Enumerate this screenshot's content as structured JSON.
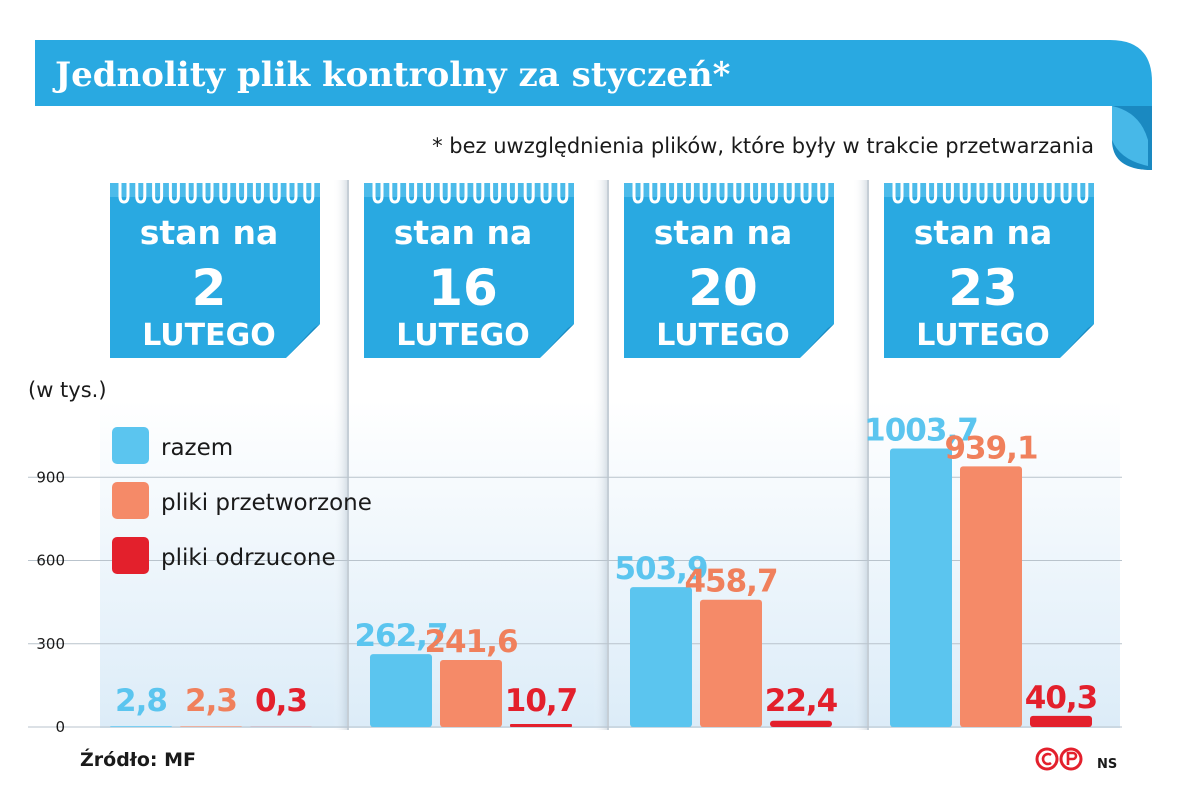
{
  "title": "Jednolity plik kontrolny za styczeń*",
  "footnote": "* bez uwzględnienia plików, które były w trakcie przetwarzania",
  "calendars": [
    {
      "top": "stan na",
      "day": "2",
      "month": "LUTEGO"
    },
    {
      "top": "stan na",
      "day": "16",
      "month": "LUTEGO"
    },
    {
      "top": "stan na",
      "day": "20",
      "month": "LUTEGO"
    },
    {
      "top": "stan na",
      "day": "23",
      "month": "LUTEGO"
    }
  ],
  "source": "Źródło: MF",
  "signature": "NS",
  "colors": {
    "razem": "#5bc5ef",
    "przetworzone": "#f58a68",
    "odrzucone": "#e3202c",
    "brand_blue": "#29a9e1"
  },
  "chart_data": {
    "type": "bar",
    "title": "Jednolity plik kontrolny za styczeń*",
    "unit_label": "(w tys.)",
    "categories": [
      "stan na 2 LUTEGO",
      "stan na 16 LUTEGO",
      "stan na 20 LUTEGO",
      "stan na 23 LUTEGO"
    ],
    "series": [
      {
        "name": "razem",
        "values": [
          2.8,
          262.7,
          503.9,
          1003.7
        ],
        "labels": [
          "2,8",
          "262,7",
          "503,9",
          "1003,7"
        ]
      },
      {
        "name": "pliki przetworzone",
        "values": [
          2.3,
          241.6,
          458.7,
          939.1
        ],
        "labels": [
          "2,3",
          "241,6",
          "458,7",
          "939,1"
        ]
      },
      {
        "name": "pliki odrzucone",
        "values": [
          0.3,
          10.7,
          22.4,
          40.3
        ],
        "labels": [
          "0,3",
          "10,7",
          "22,4",
          "40,3"
        ]
      }
    ],
    "yticks": [
      0,
      300,
      600,
      900
    ],
    "ylim": [
      0,
      1003.7
    ],
    "legend_position": "top-left"
  }
}
